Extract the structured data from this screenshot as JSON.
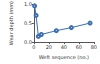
{
  "chart_data": {
    "type": "line",
    "x_label": "Weft sequence (no.)",
    "y_label": "Wear depth (mm)",
    "x": [
      1,
      3,
      6,
      10,
      30,
      50,
      75
    ],
    "values": [
      0.95,
      0.7,
      0.15,
      0.2,
      0.3,
      0.38,
      0.5
    ],
    "color": "#3a6fb0",
    "marker": "circle",
    "xlim": [
      0,
      80
    ],
    "xticks": [
      0,
      20,
      40,
      60,
      80
    ],
    "ylim": [
      0,
      1
    ],
    "yticks": [
      {
        "value": 0,
        "label": "0.0"
      },
      {
        "value": 0.5,
        "label": "0.5"
      },
      {
        "value": 1,
        "label": "1.0"
      }
    ],
    "grid": false
  }
}
